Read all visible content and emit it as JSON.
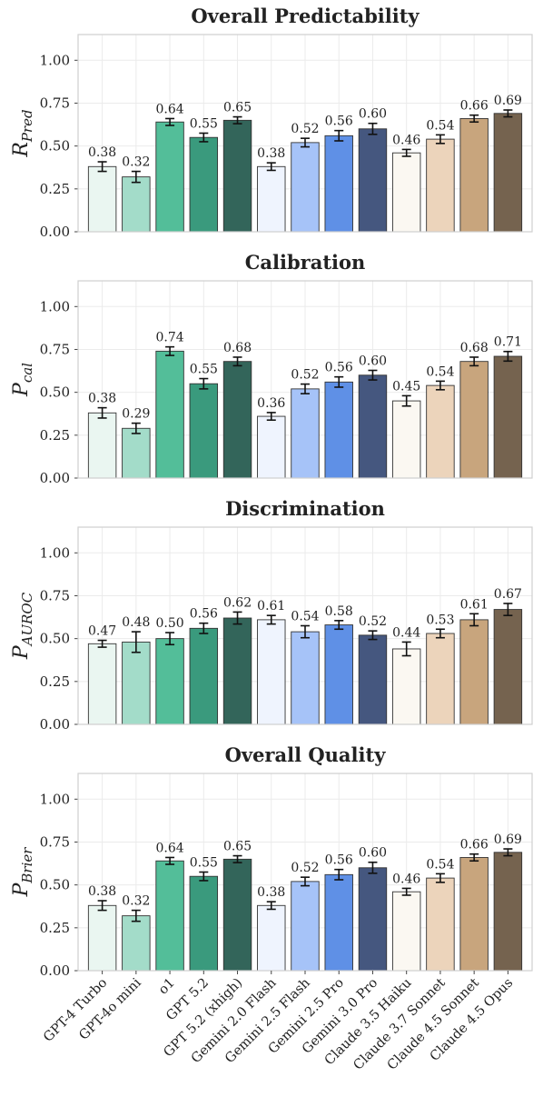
{
  "chart_data": {
    "type": "bar",
    "categories": [
      "GPT-4 Turbo",
      "GPT-4o mini",
      "o1",
      "GPT 5.2",
      "GPT 5.2 (xhigh)",
      "Gemini 2.0 Flash",
      "Gemini 2.5 Flash",
      "Gemini 2.5 Pro",
      "Gemini 3.0 Pro",
      "Claude 3.5 Haiku",
      "Claude 3.7 Sonnet",
      "Claude 4.5 Sonnet",
      "Claude 4.5 Opus"
    ],
    "colors": [
      "#eaf6f1",
      "#a3dcc9",
      "#53be99",
      "#3a9a7d",
      "#33655a",
      "#eff4fe",
      "#a6c3f8",
      "#5f90e6",
      "#45577f",
      "#fbf8f2",
      "#ecd4bb",
      "#c8a57d",
      "#75634f"
    ],
    "yticks": [
      0.0,
      0.25,
      0.5,
      0.75,
      1.0
    ],
    "ytick_labels": [
      "0.00",
      "0.25",
      "0.50",
      "0.75",
      "1.00"
    ],
    "ylim": [
      0,
      1.15
    ],
    "grid": true,
    "panels": [
      {
        "title": "Overall Predictability",
        "ylabel_main": "R",
        "ylabel_sub": "Pred",
        "values": [
          0.38,
          0.32,
          0.64,
          0.55,
          0.65,
          0.38,
          0.52,
          0.56,
          0.6,
          0.46,
          0.54,
          0.66,
          0.69
        ],
        "value_labels": [
          "0.38",
          "0.32",
          "0.64",
          "0.55",
          "0.65",
          "0.38",
          "0.52",
          "0.56",
          "0.60",
          "0.46",
          "0.54",
          "0.66",
          "0.69"
        ],
        "errors": [
          0.028,
          0.032,
          0.02,
          0.025,
          0.02,
          0.022,
          0.025,
          0.03,
          0.032,
          0.02,
          0.025,
          0.02,
          0.02
        ]
      },
      {
        "title": "Calibration",
        "ylabel_main": "P",
        "ylabel_sub": "cal",
        "values": [
          0.38,
          0.29,
          0.74,
          0.55,
          0.68,
          0.36,
          0.52,
          0.56,
          0.6,
          0.45,
          0.54,
          0.68,
          0.71
        ],
        "value_labels": [
          "0.38",
          "0.29",
          "0.74",
          "0.55",
          "0.68",
          "0.36",
          "0.52",
          "0.56",
          "0.60",
          "0.45",
          "0.54",
          "0.68",
          "0.71"
        ],
        "errors": [
          0.03,
          0.03,
          0.025,
          0.03,
          0.025,
          0.022,
          0.028,
          0.03,
          0.028,
          0.03,
          0.025,
          0.025,
          0.028
        ]
      },
      {
        "title": "Discrimination",
        "ylabel_main": "P",
        "ylabel_sub": "AUROC",
        "values": [
          0.47,
          0.48,
          0.5,
          0.56,
          0.62,
          0.61,
          0.54,
          0.58,
          0.52,
          0.44,
          0.53,
          0.61,
          0.67
        ],
        "value_labels": [
          "0.47",
          "0.48",
          "0.50",
          "0.56",
          "0.62",
          "0.61",
          "0.54",
          "0.58",
          "0.52",
          "0.44",
          "0.53",
          "0.61",
          "0.67"
        ],
        "errors": [
          0.02,
          0.06,
          0.035,
          0.03,
          0.035,
          0.025,
          0.035,
          0.025,
          0.025,
          0.04,
          0.025,
          0.035,
          0.035
        ]
      },
      {
        "title": "Overall Quality",
        "ylabel_main": "P",
        "ylabel_sub": "Brier",
        "values": [
          0.38,
          0.32,
          0.64,
          0.55,
          0.65,
          0.38,
          0.52,
          0.56,
          0.6,
          0.46,
          0.54,
          0.66,
          0.69
        ],
        "value_labels": [
          "0.38",
          "0.32",
          "0.64",
          "0.55",
          "0.65",
          "0.38",
          "0.52",
          "0.56",
          "0.60",
          "0.46",
          "0.54",
          "0.66",
          "0.69"
        ],
        "errors": [
          0.028,
          0.032,
          0.02,
          0.025,
          0.02,
          0.022,
          0.025,
          0.03,
          0.032,
          0.02,
          0.025,
          0.02,
          0.02
        ]
      }
    ]
  }
}
